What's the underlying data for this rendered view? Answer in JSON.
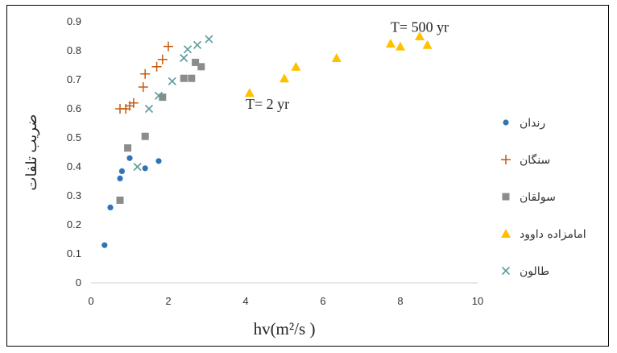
{
  "chart_data": {
    "type": "scatter",
    "xlabel": "hv(m²/s )",
    "ylabel": "ضریب تلفات",
    "xlim": [
      0,
      10
    ],
    "ylim": [
      0,
      0.9
    ],
    "x_ticks": [
      "0",
      "2",
      "4",
      "6",
      "8",
      "10"
    ],
    "y_ticks": [
      "0",
      "0.1",
      "0.2",
      "0.3",
      "0.4",
      "0.5",
      "0.6",
      "0.7",
      "0.8",
      "0.9"
    ],
    "grid": false,
    "legend_position": "right",
    "annotations": [
      {
        "text": "T= 2 yr",
        "x": 4.0,
        "y": 0.6
      },
      {
        "text": "T= 500 yr",
        "x": 8.5,
        "y": 0.865
      }
    ],
    "series": [
      {
        "name": "رندان",
        "marker": "circle",
        "color": "#2e75b6",
        "points": [
          [
            0.35,
            0.13
          ],
          [
            0.5,
            0.26
          ],
          [
            0.75,
            0.36
          ],
          [
            0.8,
            0.385
          ],
          [
            1.0,
            0.43
          ],
          [
            1.4,
            0.395
          ],
          [
            1.75,
            0.42
          ]
        ]
      },
      {
        "name": "سنگان",
        "marker": "plus",
        "color": "#c55a11",
        "points": [
          [
            0.75,
            0.6
          ],
          [
            0.9,
            0.6
          ],
          [
            1.0,
            0.61
          ],
          [
            1.1,
            0.62
          ],
          [
            1.35,
            0.675
          ],
          [
            1.4,
            0.72
          ],
          [
            1.7,
            0.745
          ],
          [
            1.85,
            0.77
          ],
          [
            2.0,
            0.815
          ]
        ]
      },
      {
        "name": "سولقان",
        "marker": "square",
        "color": "#8c8c8c",
        "points": [
          [
            0.75,
            0.285
          ],
          [
            0.95,
            0.465
          ],
          [
            1.4,
            0.505
          ],
          [
            1.85,
            0.64
          ],
          [
            2.4,
            0.705
          ],
          [
            2.6,
            0.705
          ],
          [
            2.7,
            0.76
          ],
          [
            2.85,
            0.745
          ]
        ]
      },
      {
        "name": "امامزاده داوود",
        "marker": "triangle",
        "color": "#ffc000",
        "points": [
          [
            4.1,
            0.655
          ],
          [
            5.0,
            0.705
          ],
          [
            5.3,
            0.745
          ],
          [
            6.35,
            0.775
          ],
          [
            7.75,
            0.825
          ],
          [
            8.0,
            0.815
          ],
          [
            8.5,
            0.85
          ],
          [
            8.7,
            0.82
          ]
        ]
      },
      {
        "name": "طالون",
        "marker": "x",
        "color": "#5b9b9b",
        "points": [
          [
            1.2,
            0.4
          ],
          [
            1.5,
            0.6
          ],
          [
            1.75,
            0.645
          ],
          [
            2.1,
            0.695
          ],
          [
            2.4,
            0.775
          ],
          [
            2.5,
            0.805
          ],
          [
            2.75,
            0.82
          ],
          [
            3.05,
            0.84
          ]
        ]
      }
    ]
  }
}
